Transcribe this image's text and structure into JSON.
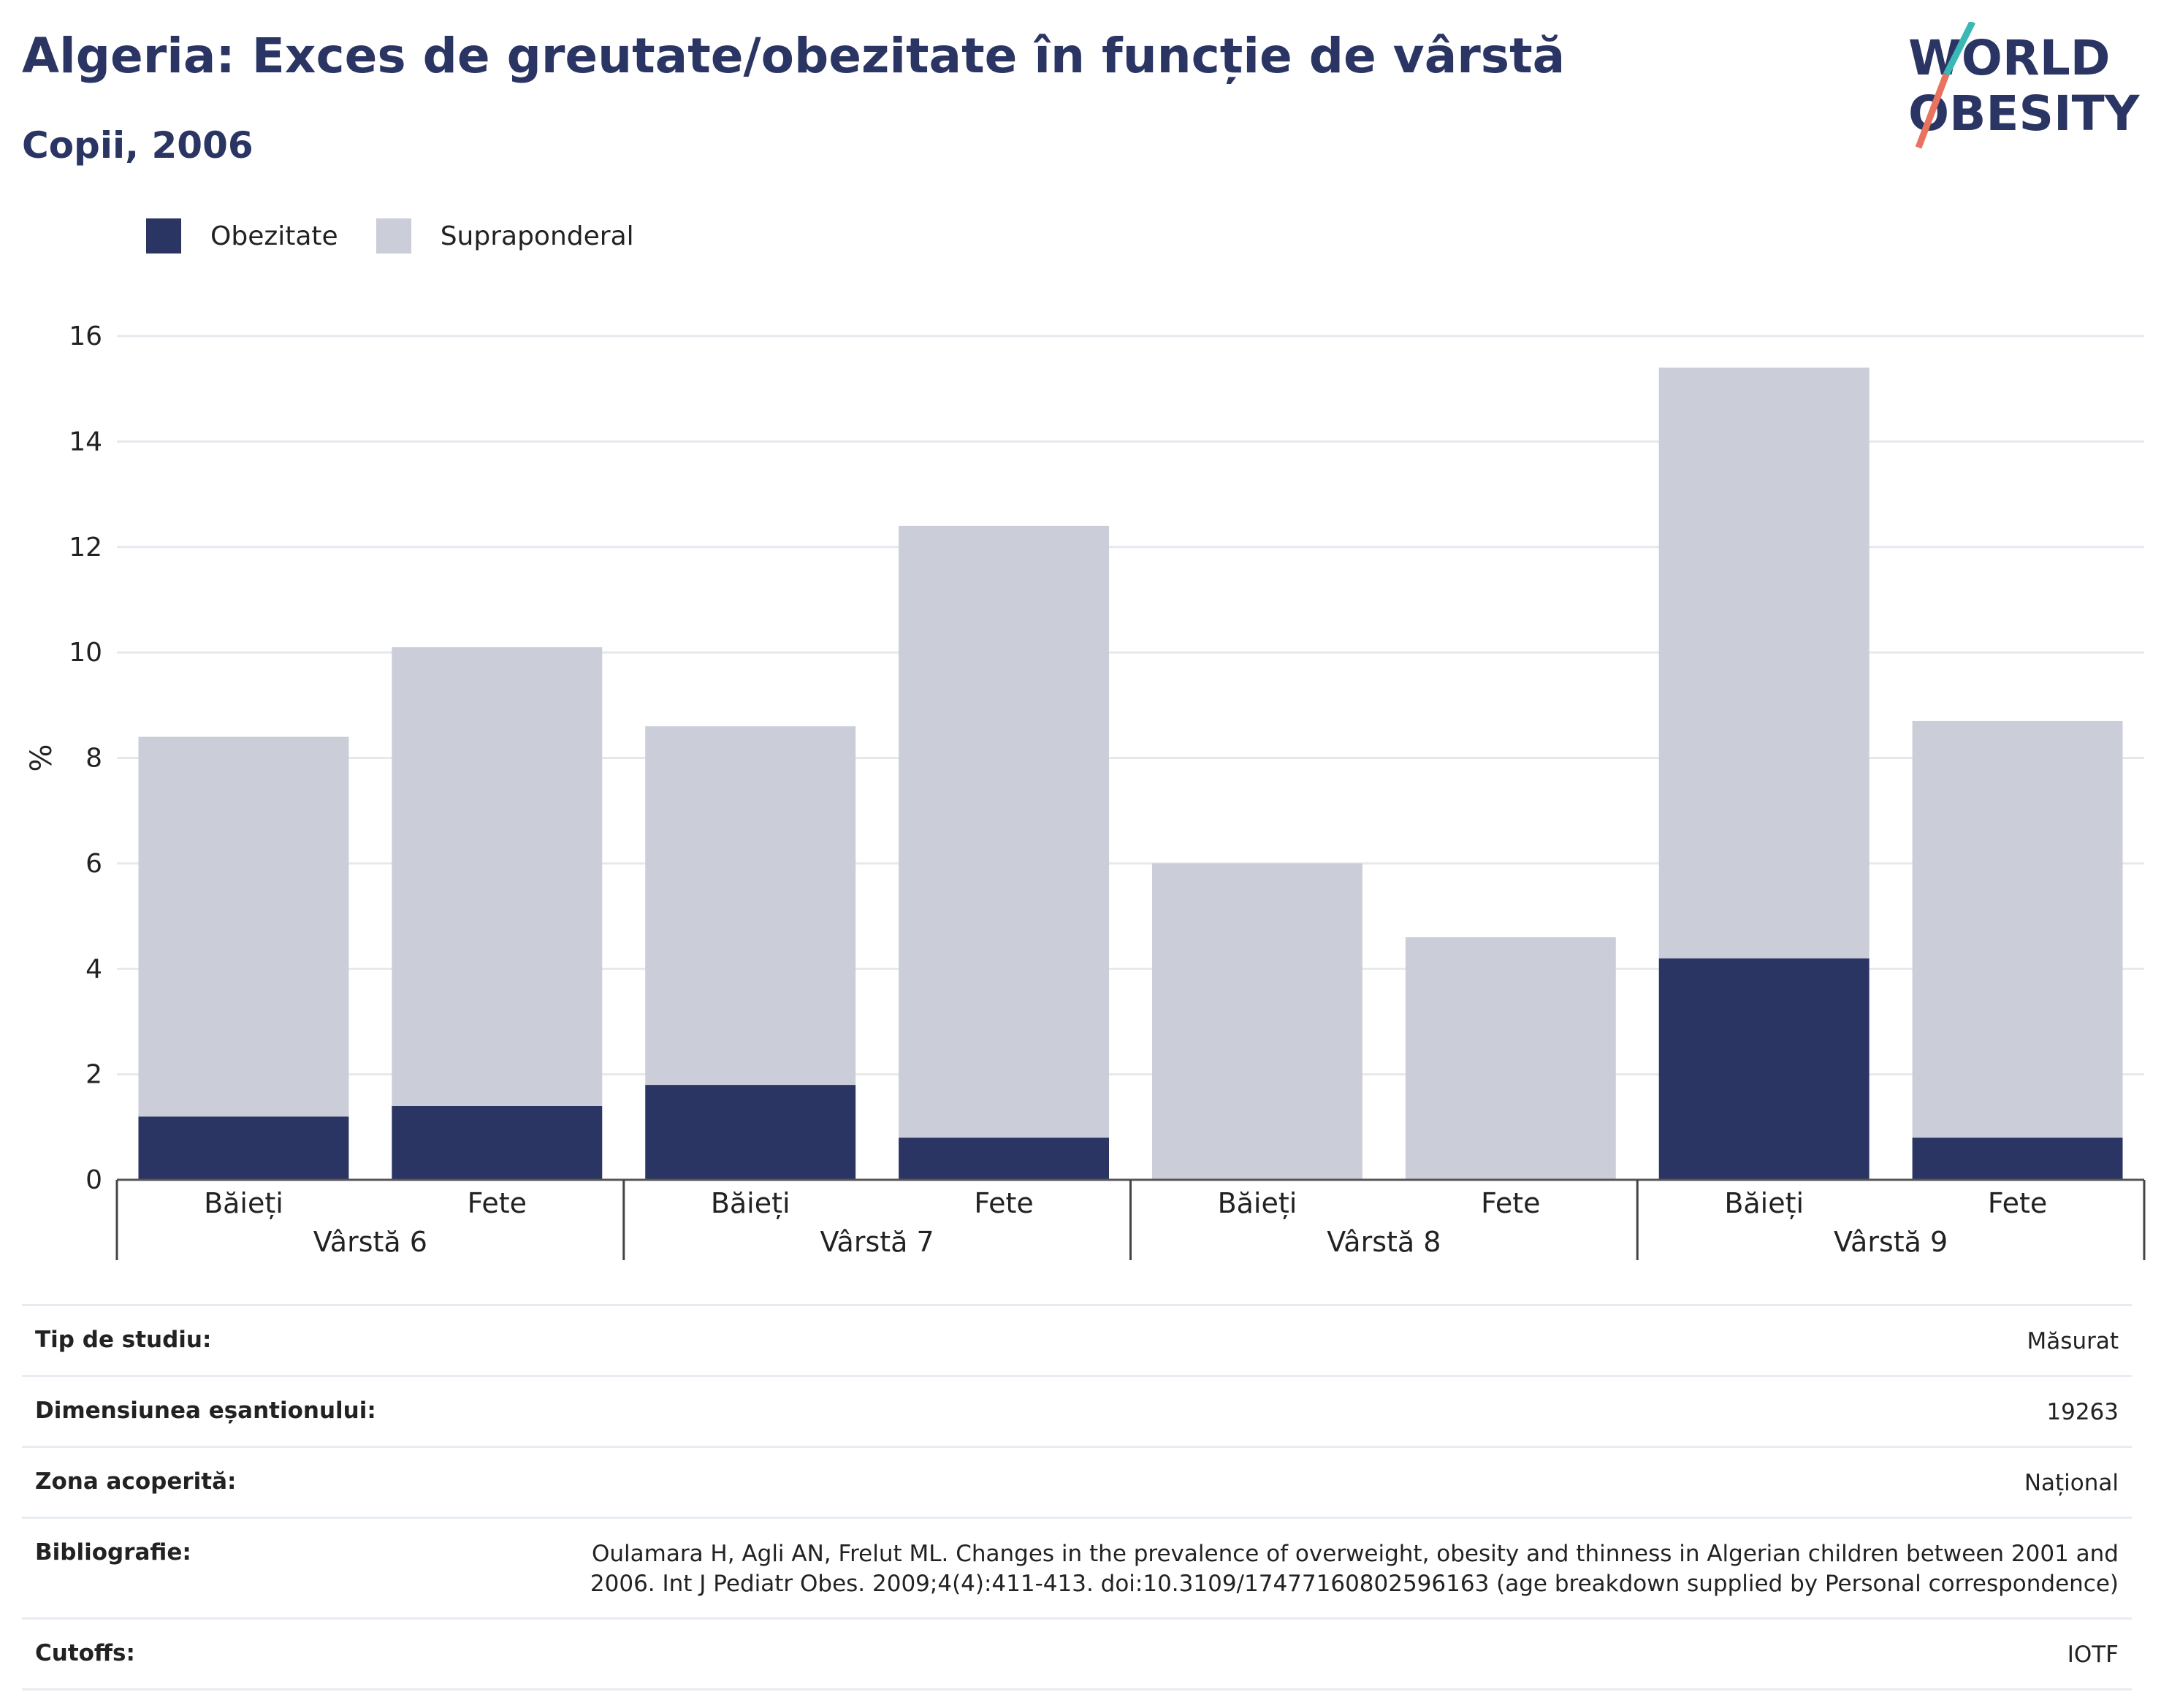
{
  "header": {
    "title": "Algeria: Exces de greutate/obezitate în funcție de vârstă",
    "subtitle": "Copii, 2006"
  },
  "logo": {
    "line1": "WORLD",
    "line2": "OBESITY"
  },
  "colors": {
    "obesity": "#2a3563",
    "overweight": "#cbcdd9",
    "text": "#2a3563",
    "accent_teal": "#3ab8b6",
    "accent_coral": "#e8735f"
  },
  "chart_data": {
    "type": "bar",
    "stacked": true,
    "ylabel": "%",
    "ylim": [
      0,
      16
    ],
    "yticks": [
      0,
      2,
      4,
      6,
      8,
      10,
      12,
      14,
      16
    ],
    "grid": true,
    "legend_position": "top-left",
    "groups": [
      "Vârstă 6",
      "Vârstă 7",
      "Vârstă 8",
      "Vârstă 9"
    ],
    "categories": [
      "Băieți",
      "Fete",
      "Băieți",
      "Fete",
      "Băieți",
      "Fete",
      "Băieți",
      "Fete"
    ],
    "series": [
      {
        "name": "Obezitate",
        "color": "#2a3563",
        "values": [
          1.2,
          1.4,
          1.8,
          0.8,
          0.0,
          0.0,
          4.2,
          0.8
        ]
      },
      {
        "name": "Supraponderal",
        "color": "#cbcdd9",
        "values": [
          7.2,
          8.7,
          6.8,
          11.6,
          6.0,
          4.6,
          11.2,
          7.9
        ]
      }
    ]
  },
  "meta": {
    "rows": [
      {
        "key": "Tip de studiu:",
        "value": "Măsurat"
      },
      {
        "key": "Dimensiunea eșantionului:",
        "value": "19263"
      },
      {
        "key": "Zona acoperită:",
        "value": "Național"
      },
      {
        "key": "Bibliografie:",
        "value": "Oulamara H, Agli AN, Frelut ML. Changes in the prevalence of overweight, obesity and thinness in Algerian children between 2001 and 2006. Int J Pediatr Obes. 2009;4(4):411-413. doi:10.3109/17477160802596163 (age breakdown supplied by Personal correspondence)"
      },
      {
        "key": "Cutoffs:",
        "value": "IOTF"
      }
    ]
  }
}
